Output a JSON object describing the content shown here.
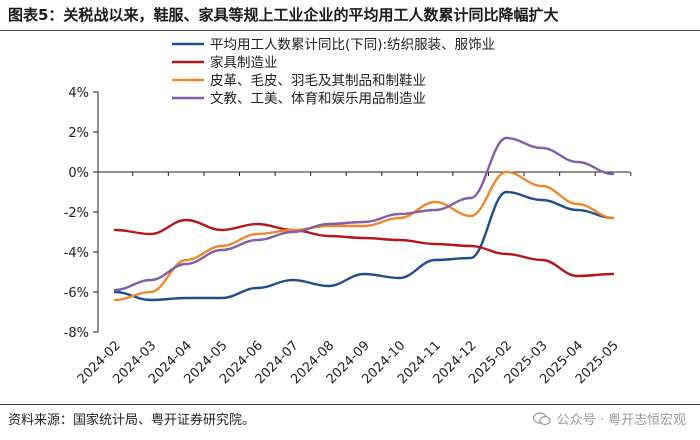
{
  "title": "图表5：关税战以来，鞋服、家具等规上工业企业的平均用工人数累计同比降幅扩大",
  "source": "资料来源：国家统计局、粤开证券研究院。",
  "watermark": "公众号 · 粤开志恒宏观",
  "chart_data": {
    "type": "line",
    "x": [
      "2024-02",
      "2024-03",
      "2024-04",
      "2024-05",
      "2024-06",
      "2024-07",
      "2024-08",
      "2024-09",
      "2024-10",
      "2024-11",
      "2024-12",
      "2025-02",
      "2025-03",
      "2025-04",
      "2025-05"
    ],
    "yticks": [
      "4%",
      "2%",
      "0%",
      "-2%",
      "-4%",
      "-6%",
      "-8%"
    ],
    "ylim": [
      -8,
      4
    ],
    "grid": false,
    "legend_position": "top-left",
    "series": [
      {
        "name": "平均用工人数累计同比(下同):纺织服装、服饰业",
        "color": "#1f4e8c",
        "values": [
          -6.0,
          -6.4,
          -6.3,
          -6.3,
          -5.8,
          -5.4,
          -5.7,
          -5.1,
          -5.3,
          -4.4,
          -4.3,
          -1.0,
          -1.4,
          -1.9,
          -2.3
        ]
      },
      {
        "name": "家具制造业",
        "color": "#b4161b",
        "values": [
          -2.9,
          -3.1,
          -2.4,
          -2.9,
          -2.6,
          -2.9,
          -3.2,
          -3.3,
          -3.4,
          -3.6,
          -3.7,
          -4.1,
          -4.4,
          -5.2,
          -5.1
        ]
      },
      {
        "name": "皮革、毛皮、羽毛及其制品和制鞋业",
        "color": "#f2872a",
        "values": [
          -6.4,
          -6.0,
          -4.4,
          -3.7,
          -3.1,
          -2.9,
          -2.7,
          -2.7,
          -2.3,
          -1.5,
          -2.2,
          0.0,
          -0.7,
          -1.6,
          -2.3
        ]
      },
      {
        "name": "文教、工美、体育和娱乐用品制造业",
        "color": "#7f5fa8",
        "values": [
          -5.9,
          -5.4,
          -4.6,
          -3.9,
          -3.4,
          -3.0,
          -2.6,
          -2.5,
          -2.1,
          -1.9,
          -1.3,
          1.7,
          1.2,
          0.5,
          -0.1
        ]
      }
    ]
  }
}
